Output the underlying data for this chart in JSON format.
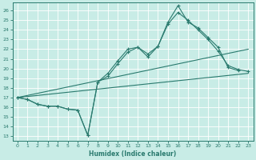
{
  "xlabel": "Humidex (Indice chaleur)",
  "background_color": "#c8ece6",
  "line_color": "#2a7a6e",
  "grid_color": "#ffffff",
  "xlim": [
    -0.5,
    23.5
  ],
  "ylim": [
    12.5,
    26.8
  ],
  "yticks": [
    13,
    14,
    15,
    16,
    17,
    18,
    19,
    20,
    21,
    22,
    23,
    24,
    25,
    26
  ],
  "xticks": [
    0,
    1,
    2,
    3,
    4,
    5,
    6,
    7,
    8,
    9,
    10,
    11,
    12,
    13,
    14,
    15,
    16,
    17,
    18,
    19,
    20,
    21,
    22,
    23
  ],
  "curve1_x": [
    0,
    1,
    2,
    3,
    4,
    5,
    6,
    7,
    8,
    9,
    10,
    11,
    12,
    13,
    14,
    15,
    16,
    17,
    18,
    19,
    20,
    21,
    22
  ],
  "curve1_y": [
    17.0,
    16.8,
    16.3,
    16.1,
    16.1,
    15.8,
    15.7,
    13.1,
    18.6,
    19.2,
    20.5,
    21.7,
    22.2,
    21.2,
    22.3,
    24.8,
    26.5,
    24.8,
    24.2,
    23.2,
    22.2,
    20.1,
    19.8
  ],
  "curve2_x": [
    0,
    1,
    2,
    3,
    4,
    5,
    6,
    7,
    8,
    9,
    10,
    11,
    12,
    13,
    14,
    15,
    16,
    17,
    18,
    19,
    20,
    21,
    22,
    23
  ],
  "curve2_y": [
    17.0,
    16.8,
    16.3,
    16.1,
    16.1,
    15.8,
    15.7,
    13.1,
    18.6,
    19.5,
    20.8,
    22.0,
    22.2,
    21.5,
    22.3,
    24.6,
    25.8,
    25.0,
    24.0,
    23.0,
    21.8,
    20.3,
    19.9,
    19.7
  ],
  "line1_x": [
    0,
    23
  ],
  "line1_y": [
    17.0,
    19.5
  ],
  "line2_x": [
    0,
    23
  ],
  "line2_y": [
    17.0,
    22.0
  ]
}
